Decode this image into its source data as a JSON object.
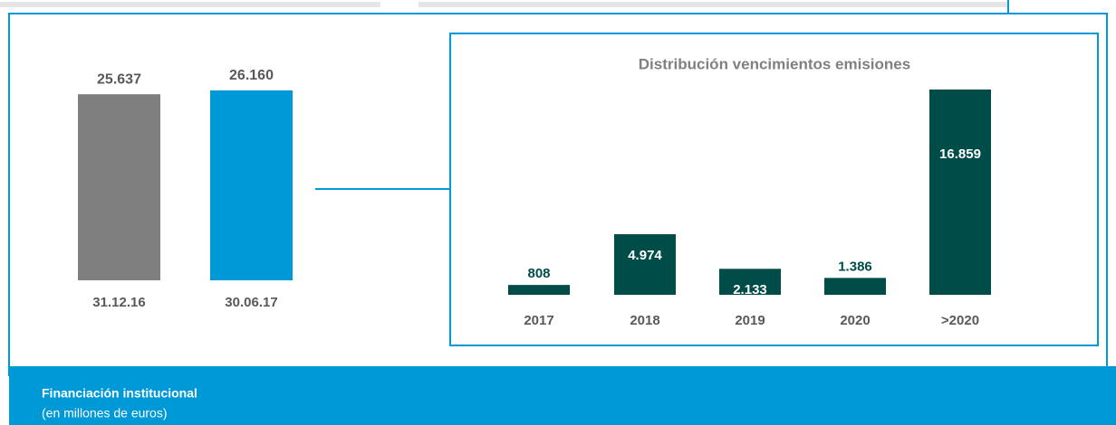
{
  "chart_data": [
    {
      "type": "bar",
      "categories": [
        "31.12.16",
        "30.06.17"
      ],
      "values": [
        25637,
        26160
      ],
      "value_labels": [
        "25.637",
        "26.160"
      ],
      "colors": [
        "#7f7f7f",
        "#0099d8"
      ]
    },
    {
      "type": "bar",
      "title": "Distribución vencimientos emisiones",
      "categories": [
        "2017",
        "2018",
        "2019",
        "2020",
        ">2020"
      ],
      "values": [
        808,
        4974,
        2133,
        1386,
        16859
      ],
      "value_labels": [
        "808",
        "4.974",
        "2.133",
        "1.386",
        "16.859"
      ],
      "color": "#004c48"
    }
  ],
  "footer": {
    "title": "Financiación institucional",
    "subtitle": "(en millones de euros)"
  }
}
